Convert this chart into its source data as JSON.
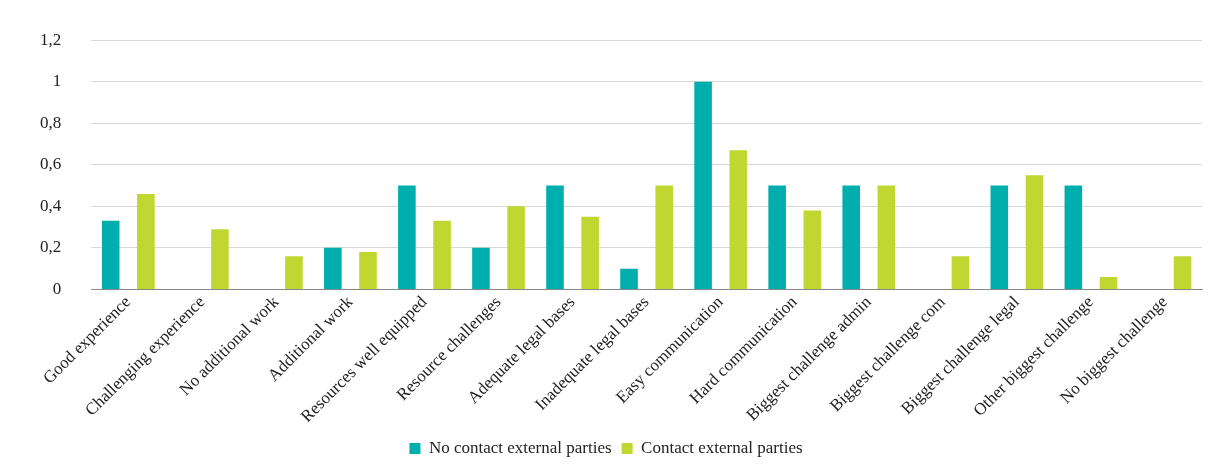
{
  "chart_data": {
    "type": "bar",
    "categories": [
      "Good experience",
      "Challenging experience",
      "No additional work",
      "Additional work",
      "Resources well equipped",
      "Resource challenges",
      "Adequate legal bases",
      "Inadequate legal bases",
      "Easy communication",
      "Hard communication",
      "Biggest challenge admin",
      "Biggest challenge com",
      "Biggest challenge legal",
      "Other biggest challenge",
      "No biggest challenge"
    ],
    "series": [
      {
        "name": "No contact external parties",
        "color": "#00aeae",
        "values": [
          0.33,
          0,
          0,
          0.2,
          0.5,
          0.2,
          0.5,
          0.1,
          1,
          0.5,
          0.5,
          0,
          0.5,
          0.5,
          0
        ]
      },
      {
        "name": "Contact external parties",
        "color": "#bfd730",
        "values": [
          0.46,
          0.29,
          0.16,
          0.18,
          0.33,
          0.4,
          0.35,
          0.5,
          0.67,
          0.38,
          0.5,
          0.16,
          0.55,
          0.06,
          0.16
        ]
      }
    ],
    "ylim": [
      0,
      1.2
    ],
    "yticks": [
      {
        "value": 0,
        "label": "0"
      },
      {
        "value": 0.2,
        "label": "0,2"
      },
      {
        "value": 0.4,
        "label": "0,4"
      },
      {
        "value": 0.6,
        "label": "0,6"
      },
      {
        "value": 0.8,
        "label": "0,8"
      },
      {
        "value": 1,
        "label": "1"
      },
      {
        "value": 1.2,
        "label": "1,2"
      }
    ],
    "grid": "y",
    "legend": "bottom"
  }
}
